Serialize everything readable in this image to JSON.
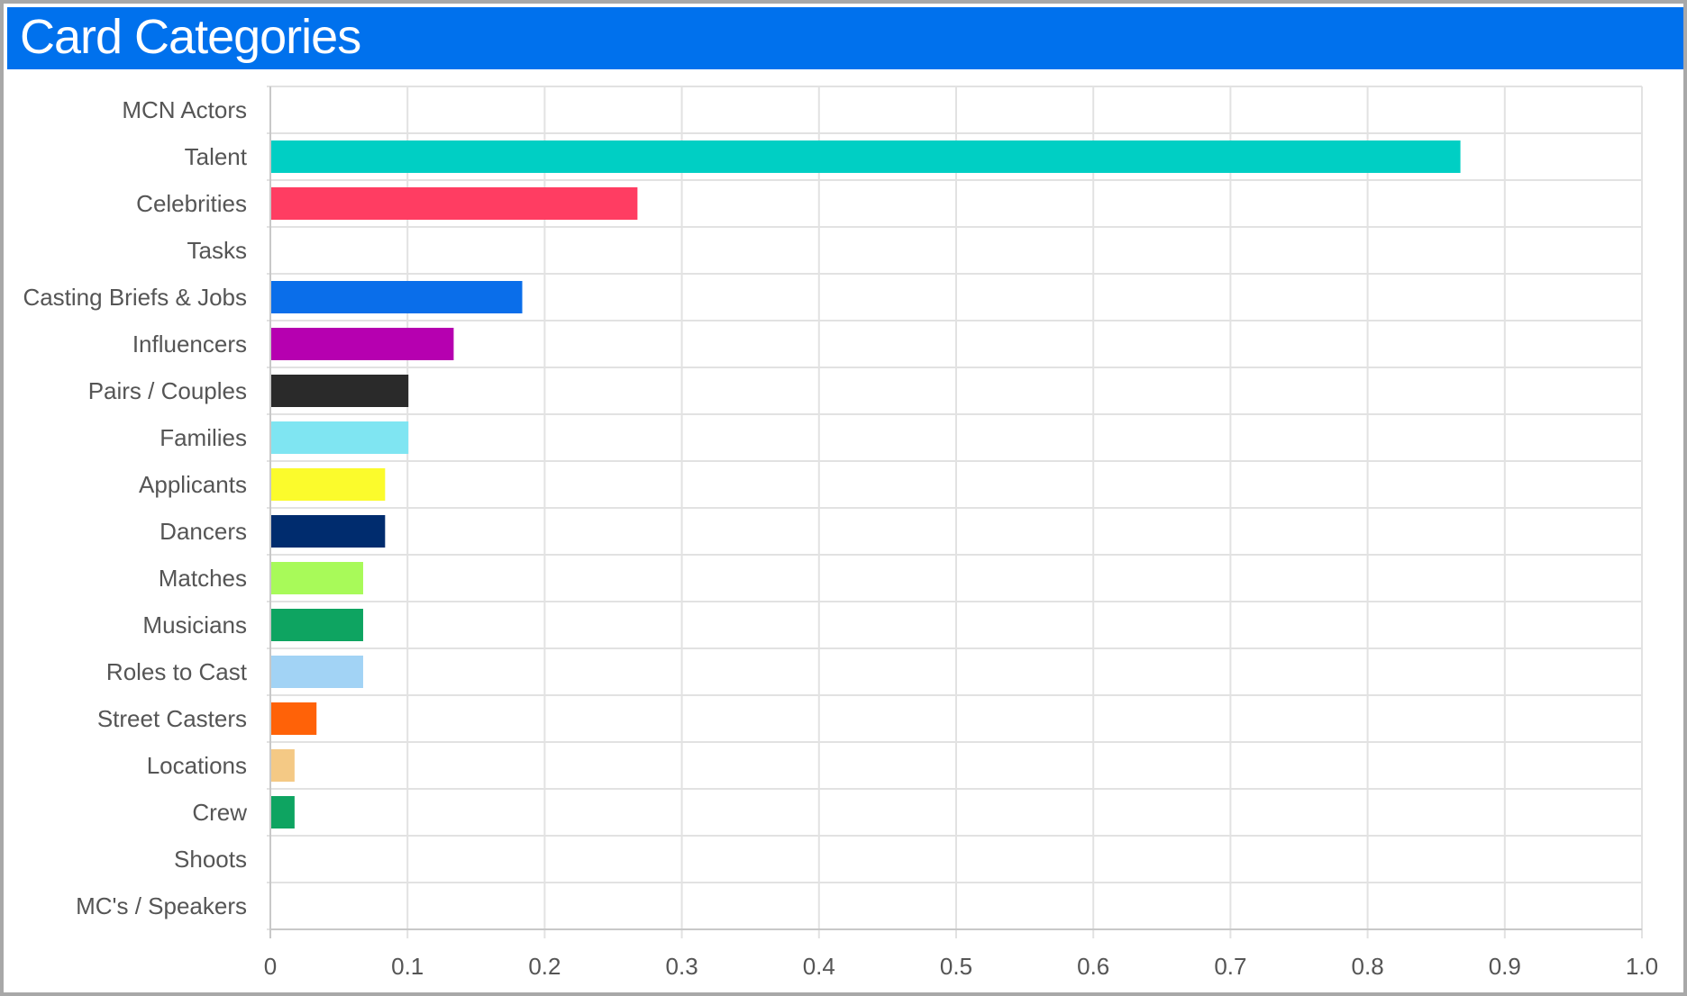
{
  "header": {
    "title": "Card Categories"
  },
  "colors": {
    "title_bar": "#0071ed",
    "grid": "#e2e2e2",
    "axis": "#c8c8c8",
    "text": "#555555"
  },
  "chart_data": {
    "type": "bar",
    "orientation": "horizontal",
    "categories": [
      "MCN Actors",
      "Talent",
      "Celebrities",
      "Tasks",
      "Casting Briefs & Jobs",
      "Influencers",
      "Pairs / Couples",
      "Families",
      "Applicants",
      "Dancers",
      "Matches",
      "Musicians",
      "Roles to Cast",
      "Street Casters",
      "Locations",
      "Crew",
      "Shoots",
      "MC's / Speakers"
    ],
    "values": [
      0,
      0.867,
      0.267,
      0,
      0.183,
      0.133,
      0.1,
      0.1,
      0.083,
      0.083,
      0.067,
      0.067,
      0.067,
      0.033,
      0.017,
      0.017,
      0,
      0
    ],
    "bar_colors": [
      "#cccccc",
      "#00cfc4",
      "#ff3d62",
      "#cccccc",
      "#0a6eea",
      "#b600b0",
      "#2a2a2a",
      "#7fe5f2",
      "#fbfb2c",
      "#002c6e",
      "#a8fa59",
      "#0ea461",
      "#a2d3f5",
      "#ff6208",
      "#f4c985",
      "#0ea461",
      "#cccccc",
      "#cccccc"
    ],
    "xlim": [
      0,
      1.0
    ],
    "xticks": [
      "0",
      "0.1",
      "0.2",
      "0.3",
      "0.4",
      "0.5",
      "0.6",
      "0.7",
      "0.8",
      "0.9",
      "1.0"
    ],
    "grid": true,
    "legend": "none"
  }
}
